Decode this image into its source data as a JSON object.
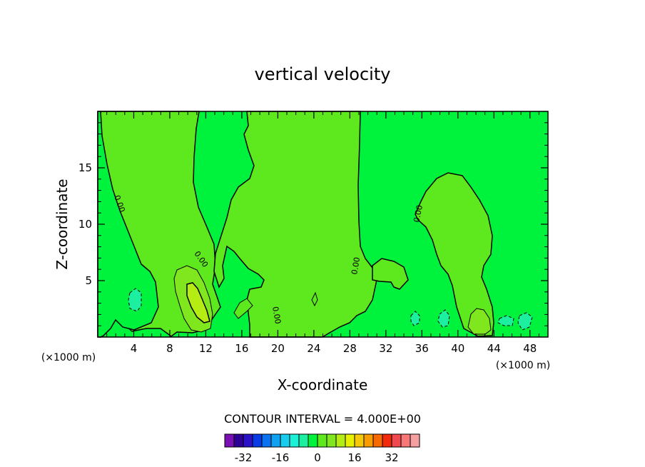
{
  "chart_data": {
    "type": "contour",
    "title": "vertical velocity",
    "xlabel": "X-coordinate",
    "ylabel": "Z-coordinate",
    "x_unit": "(×1000 m)",
    "y_unit": "(×1000 m)",
    "xlim": [
      0,
      50
    ],
    "ylim": [
      0,
      20
    ],
    "x_ticks": [
      4,
      8,
      12,
      16,
      20,
      24,
      28,
      32,
      36,
      40,
      44,
      48
    ],
    "y_ticks": [
      5,
      10,
      15
    ],
    "contour_interval_text": "CONTOUR INTERVAL = 4.000E+00",
    "contour_interval": 4.0,
    "contour_line_label": "0.00",
    "background_color": "#00f33c",
    "features": [
      {
        "kind": "positive",
        "level": 4,
        "color": "#5ee81e",
        "label": "left updraft column"
      },
      {
        "kind": "positive",
        "level": 8,
        "color": "#80e61e",
        "label": "updraft core"
      },
      {
        "kind": "positive",
        "level": 12,
        "color": "#b4ec14",
        "label": "updraft maximum"
      },
      {
        "kind": "positive",
        "level": 4,
        "color": "#5ee81e",
        "label": "central plume"
      },
      {
        "kind": "positive",
        "level": 4,
        "color": "#5ee81e",
        "label": "right dome"
      },
      {
        "kind": "positive",
        "level": 8,
        "color": "#80e61e",
        "label": "right low-level cell"
      },
      {
        "kind": "negative",
        "level": -4,
        "color": "#1cf0a0",
        "label": "downdraft cells"
      }
    ],
    "colorbar": {
      "tick_labels": [
        "-32",
        "-16",
        "0",
        "16",
        "32"
      ],
      "tick_values": [
        -32,
        -16,
        0,
        16,
        32
      ],
      "colors": [
        "#7a0fb4",
        "#2d0096",
        "#2b11c8",
        "#0a3ce6",
        "#0b72f0",
        "#0ea2f0",
        "#17ccec",
        "#1cf0d8",
        "#1cf0a0",
        "#00f33c",
        "#5ee81e",
        "#80e61e",
        "#b4ec14",
        "#e6f000",
        "#f6c80a",
        "#f89c00",
        "#f86a00",
        "#f02a0a",
        "#f04a50",
        "#f87878",
        "#f4a0a0"
      ]
    }
  }
}
